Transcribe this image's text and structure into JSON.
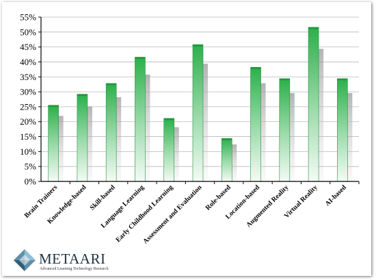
{
  "chart_data": {
    "type": "bar",
    "categories": [
      "Brain Trainers",
      "Knowledge-based",
      "Skill-based",
      "Language Learning",
      "Early Childhood Learning",
      "Assessment and Evaluation",
      "Role-based",
      "Location-based",
      "Augmented Reality",
      "Virtual Reality",
      "AI-based"
    ],
    "values": [
      25.5,
      29.2,
      32.8,
      41.6,
      21.1,
      45.8,
      14.4,
      38.2,
      34.4,
      51.6,
      34.4
    ],
    "y_ticks": [
      "0%",
      "5%",
      "10%",
      "15%",
      "20%",
      "25%",
      "30%",
      "35%",
      "40%",
      "45%",
      "50%",
      "55%"
    ],
    "ylim": [
      0,
      55
    ],
    "y_format": "percent",
    "grid": true,
    "colors": {
      "bar_top": "#2bb04a",
      "bar_bottom": "#f4fbf5",
      "gridline": "#b8b8b8",
      "axis": "#000000"
    }
  },
  "logo": {
    "name": "METAARI",
    "tagline": "Advanced Learning Technology Research"
  }
}
